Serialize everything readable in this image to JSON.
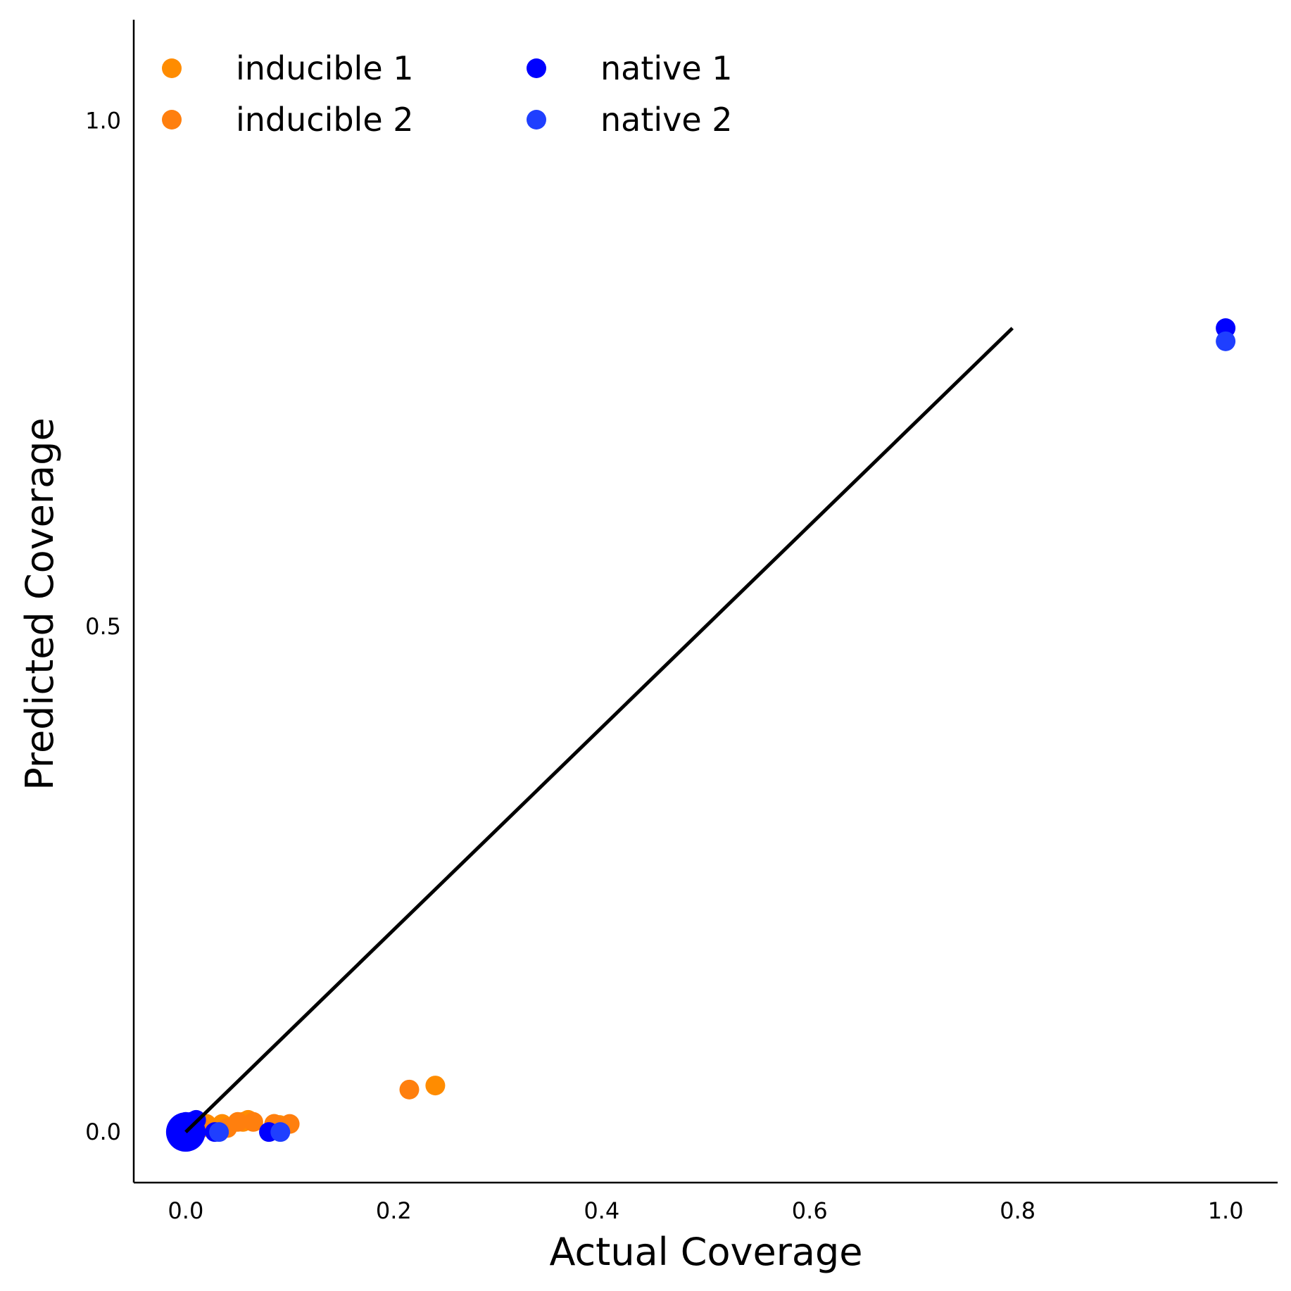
{
  "chart_data": {
    "type": "scatter",
    "xlabel": "Actual Coverage",
    "ylabel": "Predicted Coverage",
    "xlim": [
      -0.05,
      1.05
    ],
    "ylim": [
      -0.05,
      1.1
    ],
    "xticks": [
      0.0,
      0.2,
      0.4,
      0.6,
      0.8,
      1.0
    ],
    "xtick_labels": [
      "0.0",
      "0.2",
      "0.4",
      "0.6",
      "0.8",
      "1.0"
    ],
    "yticks": [
      0.0,
      0.5,
      1.0
    ],
    "ytick_labels": [
      "0.0",
      "0.5",
      "1.0"
    ],
    "grid": false,
    "legend": {
      "placement": "top-left",
      "columns": 2
    },
    "reference_line": {
      "x": [
        0.0,
        0.795
      ],
      "y": [
        0.0,
        0.795
      ],
      "color": "#000000"
    },
    "series": [
      {
        "name": "inducible 1",
        "color": "#ff8c00",
        "points": [
          [
            0.0,
            0.0
          ],
          [
            0.005,
            0.005
          ],
          [
            0.01,
            0.005
          ],
          [
            0.02,
            0.008
          ],
          [
            0.035,
            0.008
          ],
          [
            0.055,
            0.01
          ],
          [
            0.06,
            0.012
          ],
          [
            0.085,
            0.008
          ],
          [
            0.09,
            0.007
          ],
          [
            0.24,
            0.046
          ]
        ]
      },
      {
        "name": "inducible 2",
        "color": "#ff7f0e",
        "points": [
          [
            0.0,
            0.0
          ],
          [
            0.015,
            0.004
          ],
          [
            0.04,
            0.004
          ],
          [
            0.05,
            0.01
          ],
          [
            0.065,
            0.01
          ],
          [
            0.085,
            0.008
          ],
          [
            0.1,
            0.008
          ],
          [
            0.215,
            0.042
          ]
        ]
      },
      {
        "name": "native 1",
        "color": "#0000ff",
        "points": [
          [
            0.0,
            0.0
          ],
          [
            0.0,
            0.005
          ],
          [
            0.0,
            0.01
          ],
          [
            0.002,
            -0.003
          ],
          [
            0.005,
            0.01
          ],
          [
            0.01,
            0.012
          ],
          [
            0.01,
            0.0
          ],
          [
            0.028,
            0.0
          ],
          [
            0.08,
            0.0
          ],
          [
            1.0,
            0.795
          ]
        ]
      },
      {
        "name": "native 2",
        "color": "#1f3fff",
        "points": [
          [
            0.0,
            0.0
          ],
          [
            0.0,
            -0.002
          ],
          [
            0.005,
            0.005
          ],
          [
            0.032,
            0.0
          ],
          [
            0.091,
            0.0
          ],
          [
            1.0,
            0.782
          ]
        ]
      }
    ]
  }
}
